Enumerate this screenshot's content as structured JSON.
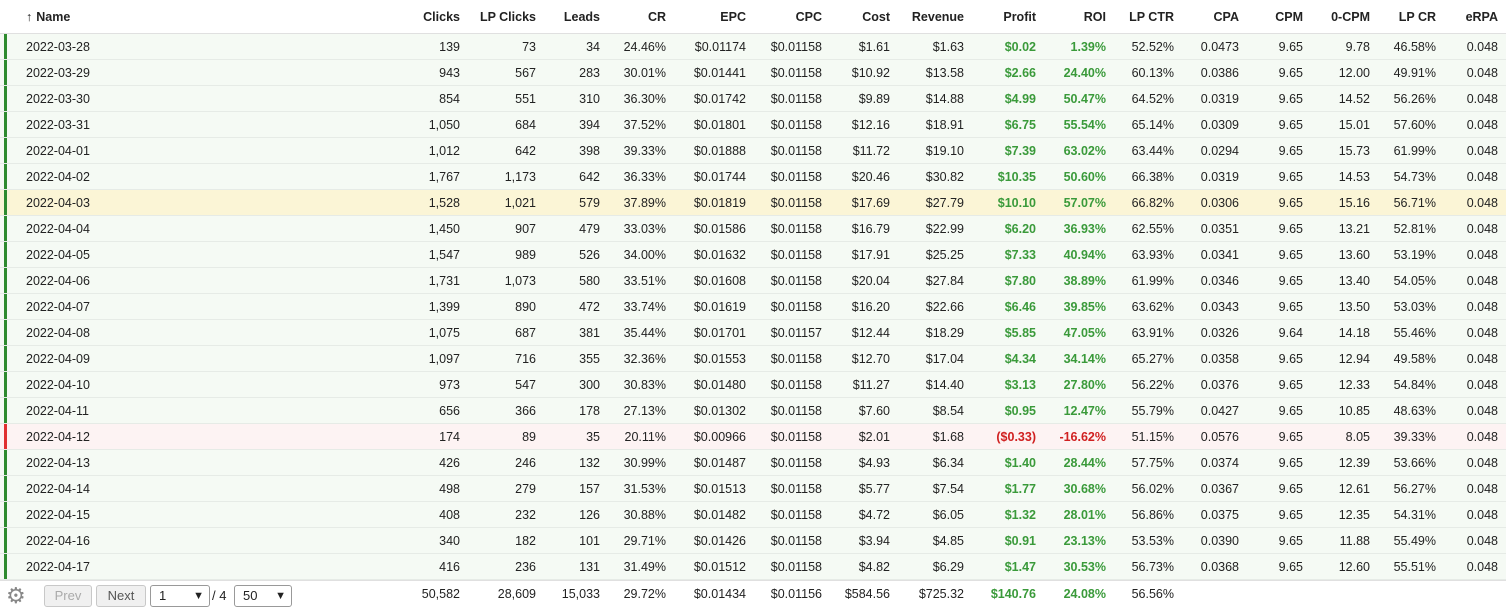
{
  "columns": [
    "Name",
    "Clicks",
    "LP Clicks",
    "Leads",
    "CR",
    "EPC",
    "CPC",
    "Cost",
    "Revenue",
    "Profit",
    "ROI",
    "LP CTR",
    "CPA",
    "CPM",
    "0-CPM",
    "LP CR",
    "eRPA"
  ],
  "sort_icon": "arrow-up-icon",
  "rows": [
    {
      "c": [
        "2022-03-28",
        "139",
        "73",
        "34",
        "24.46%",
        "$0.01174",
        "$0.01158",
        "$1.61",
        "$1.63",
        "$0.02",
        "1.39%",
        "52.52%",
        "0.0473",
        "9.65",
        "9.78",
        "46.58%",
        "0.048"
      ]
    },
    {
      "c": [
        "2022-03-29",
        "943",
        "567",
        "283",
        "30.01%",
        "$0.01441",
        "$0.01158",
        "$10.92",
        "$13.58",
        "$2.66",
        "24.40%",
        "60.13%",
        "0.0386",
        "9.65",
        "12.00",
        "49.91%",
        "0.048"
      ]
    },
    {
      "c": [
        "2022-03-30",
        "854",
        "551",
        "310",
        "36.30%",
        "$0.01742",
        "$0.01158",
        "$9.89",
        "$14.88",
        "$4.99",
        "50.47%",
        "64.52%",
        "0.0319",
        "9.65",
        "14.52",
        "56.26%",
        "0.048"
      ]
    },
    {
      "c": [
        "2022-03-31",
        "1,050",
        "684",
        "394",
        "37.52%",
        "$0.01801",
        "$0.01158",
        "$12.16",
        "$18.91",
        "$6.75",
        "55.54%",
        "65.14%",
        "0.0309",
        "9.65",
        "15.01",
        "57.60%",
        "0.048"
      ]
    },
    {
      "c": [
        "2022-04-01",
        "1,012",
        "642",
        "398",
        "39.33%",
        "$0.01888",
        "$0.01158",
        "$11.72",
        "$19.10",
        "$7.39",
        "63.02%",
        "63.44%",
        "0.0294",
        "9.65",
        "15.73",
        "61.99%",
        "0.048"
      ]
    },
    {
      "c": [
        "2022-04-02",
        "1,767",
        "1,173",
        "642",
        "36.33%",
        "$0.01744",
        "$0.01158",
        "$20.46",
        "$30.82",
        "$10.35",
        "50.60%",
        "66.38%",
        "0.0319",
        "9.65",
        "14.53",
        "54.73%",
        "0.048"
      ]
    },
    {
      "c": [
        "2022-04-03",
        "1,528",
        "1,021",
        "579",
        "37.89%",
        "$0.01819",
        "$0.01158",
        "$17.69",
        "$27.79",
        "$10.10",
        "57.07%",
        "66.82%",
        "0.0306",
        "9.65",
        "15.16",
        "56.71%",
        "0.048"
      ],
      "hl": true
    },
    {
      "c": [
        "2022-04-04",
        "1,450",
        "907",
        "479",
        "33.03%",
        "$0.01586",
        "$0.01158",
        "$16.79",
        "$22.99",
        "$6.20",
        "36.93%",
        "62.55%",
        "0.0351",
        "9.65",
        "13.21",
        "52.81%",
        "0.048"
      ]
    },
    {
      "c": [
        "2022-04-05",
        "1,547",
        "989",
        "526",
        "34.00%",
        "$0.01632",
        "$0.01158",
        "$17.91",
        "$25.25",
        "$7.33",
        "40.94%",
        "63.93%",
        "0.0341",
        "9.65",
        "13.60",
        "53.19%",
        "0.048"
      ]
    },
    {
      "c": [
        "2022-04-06",
        "1,731",
        "1,073",
        "580",
        "33.51%",
        "$0.01608",
        "$0.01158",
        "$20.04",
        "$27.84",
        "$7.80",
        "38.89%",
        "61.99%",
        "0.0346",
        "9.65",
        "13.40",
        "54.05%",
        "0.048"
      ]
    },
    {
      "c": [
        "2022-04-07",
        "1,399",
        "890",
        "472",
        "33.74%",
        "$0.01619",
        "$0.01158",
        "$16.20",
        "$22.66",
        "$6.46",
        "39.85%",
        "63.62%",
        "0.0343",
        "9.65",
        "13.50",
        "53.03%",
        "0.048"
      ]
    },
    {
      "c": [
        "2022-04-08",
        "1,075",
        "687",
        "381",
        "35.44%",
        "$0.01701",
        "$0.01157",
        "$12.44",
        "$18.29",
        "$5.85",
        "47.05%",
        "63.91%",
        "0.0326",
        "9.64",
        "14.18",
        "55.46%",
        "0.048"
      ]
    },
    {
      "c": [
        "2022-04-09",
        "1,097",
        "716",
        "355",
        "32.36%",
        "$0.01553",
        "$0.01158",
        "$12.70",
        "$17.04",
        "$4.34",
        "34.14%",
        "65.27%",
        "0.0358",
        "9.65",
        "12.94",
        "49.58%",
        "0.048"
      ]
    },
    {
      "c": [
        "2022-04-10",
        "973",
        "547",
        "300",
        "30.83%",
        "$0.01480",
        "$0.01158",
        "$11.27",
        "$14.40",
        "$3.13",
        "27.80%",
        "56.22%",
        "0.0376",
        "9.65",
        "12.33",
        "54.84%",
        "0.048"
      ]
    },
    {
      "c": [
        "2022-04-11",
        "656",
        "366",
        "178",
        "27.13%",
        "$0.01302",
        "$0.01158",
        "$7.60",
        "$8.54",
        "$0.95",
        "12.47%",
        "55.79%",
        "0.0427",
        "9.65",
        "10.85",
        "48.63%",
        "0.048"
      ]
    },
    {
      "c": [
        "2022-04-12",
        "174",
        "89",
        "35",
        "20.11%",
        "$0.00966",
        "$0.01158",
        "$2.01",
        "$1.68",
        "($0.33)",
        "-16.62%",
        "51.15%",
        "0.0576",
        "9.65",
        "8.05",
        "39.33%",
        "0.048"
      ],
      "neg": true
    },
    {
      "c": [
        "2022-04-13",
        "426",
        "246",
        "132",
        "30.99%",
        "$0.01487",
        "$0.01158",
        "$4.93",
        "$6.34",
        "$1.40",
        "28.44%",
        "57.75%",
        "0.0374",
        "9.65",
        "12.39",
        "53.66%",
        "0.048"
      ]
    },
    {
      "c": [
        "2022-04-14",
        "498",
        "279",
        "157",
        "31.53%",
        "$0.01513",
        "$0.01158",
        "$5.77",
        "$7.54",
        "$1.77",
        "30.68%",
        "56.02%",
        "0.0367",
        "9.65",
        "12.61",
        "56.27%",
        "0.048"
      ]
    },
    {
      "c": [
        "2022-04-15",
        "408",
        "232",
        "126",
        "30.88%",
        "$0.01482",
        "$0.01158",
        "$4.72",
        "$6.05",
        "$1.32",
        "28.01%",
        "56.86%",
        "0.0375",
        "9.65",
        "12.35",
        "54.31%",
        "0.048"
      ]
    },
    {
      "c": [
        "2022-04-16",
        "340",
        "182",
        "101",
        "29.71%",
        "$0.01426",
        "$0.01158",
        "$3.94",
        "$4.85",
        "$0.91",
        "23.13%",
        "53.53%",
        "0.0390",
        "9.65",
        "11.88",
        "55.49%",
        "0.048"
      ]
    },
    {
      "c": [
        "2022-04-17",
        "416",
        "236",
        "131",
        "31.49%",
        "$0.01512",
        "$0.01158",
        "$4.82",
        "$6.29",
        "$1.47",
        "30.53%",
        "56.73%",
        "0.0368",
        "9.65",
        "12.60",
        "55.51%",
        "0.048"
      ]
    }
  ],
  "totals": [
    "50,582",
    "28,609",
    "15,033",
    "29.72%",
    "$0.01434",
    "$0.01156",
    "$584.56",
    "$725.32",
    "$140.76",
    "24.08%",
    "56.56%"
  ],
  "footer": {
    "settings_icon": "gear-icon",
    "prev_label": "Prev",
    "next_label": "Next",
    "page_value": "1",
    "page_of": "/ 4",
    "page_size_value": "50"
  },
  "colors": {
    "positive": "#3a9a3a",
    "negative": "#d02020",
    "row_bar_positive": "#2e8b2e",
    "row_bar_negative": "#e03030",
    "highlight_row": "#fbf5d6"
  }
}
